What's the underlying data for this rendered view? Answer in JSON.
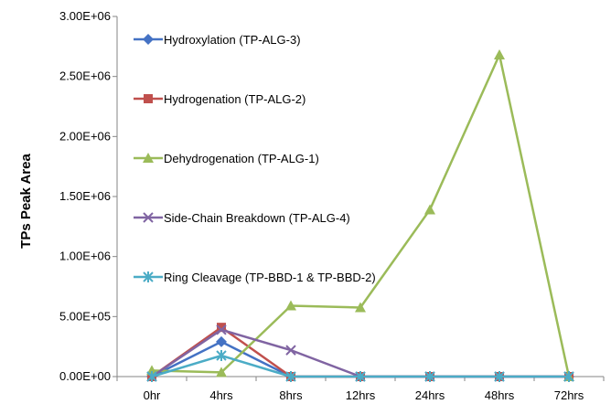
{
  "chart_data": {
    "type": "line",
    "categories": [
      "0hr",
      "4hrs",
      "8hrs",
      "12hrs",
      "24hrs",
      "48hrs",
      "72hrs"
    ],
    "ylabel": "TPs Peak Area",
    "xlabel": "",
    "ylim": [
      0,
      3000000
    ],
    "yticks": [
      0,
      500000,
      1000000,
      1500000,
      2000000,
      2500000,
      3000000
    ],
    "ytick_labels": [
      "0.00E+00",
      "5.00E+05",
      "1.00E+06",
      "1.50E+06",
      "2.00E+06",
      "2.50E+06",
      "3.00E+06"
    ],
    "grid": false,
    "legend_position": "top-left",
    "series": [
      {
        "name": "Hydroxylation (TP-ALG-3)",
        "color": "#4472C4",
        "marker": "diamond",
        "values": [
          0,
          290000,
          0,
          0,
          0,
          0,
          0
        ]
      },
      {
        "name": "Hydrogenation (TP-ALG-2)",
        "color": "#C0504D",
        "marker": "square",
        "values": [
          0,
          410000,
          0,
          0,
          0,
          0,
          0
        ]
      },
      {
        "name": "Dehydrogenation (TP-ALG-1)",
        "color": "#9BBB59",
        "marker": "triangle",
        "values": [
          50000,
          35000,
          590000,
          575000,
          1390000,
          2680000,
          0
        ]
      },
      {
        "name": "Side-Chain Breakdown (TP-ALG-4)",
        "color": "#8064A2",
        "marker": "x",
        "values": [
          0,
          390000,
          220000,
          0,
          0,
          0,
          0
        ]
      },
      {
        "name": "Ring Cleavage (TP-BBD-1 & TP-BBD-2)",
        "color": "#4BACC6",
        "marker": "star",
        "values": [
          0,
          175000,
          0,
          0,
          0,
          0,
          0
        ]
      }
    ]
  }
}
